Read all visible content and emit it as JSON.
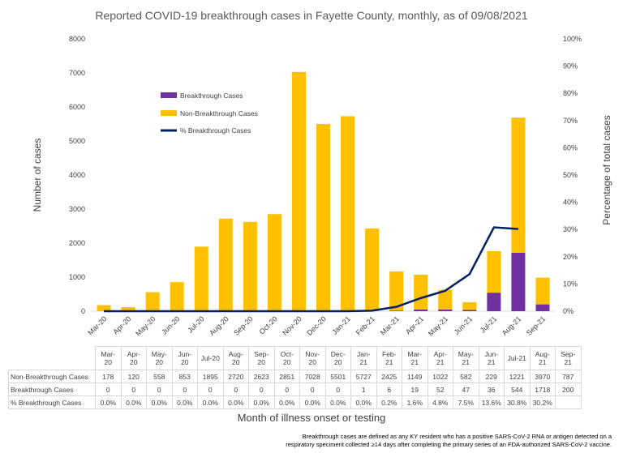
{
  "chart_data": {
    "type": "bar",
    "stacked": true,
    "title": "Reported COVID-19 breakthrough cases in Fayette County, monthly, as of 09/08/2021",
    "xlabel": "Month of illness onset or testing",
    "ylabel": "Number of cases",
    "y2label": "Percentage of total cases",
    "ylim": [
      0,
      8000
    ],
    "y2lim": [
      0,
      100
    ],
    "yticks": [
      0,
      1000,
      2000,
      3000,
      4000,
      5000,
      6000,
      7000,
      8000
    ],
    "y2ticks": [
      "0%",
      "10%",
      "20%",
      "30%",
      "40%",
      "50%",
      "60%",
      "70%",
      "80%",
      "90%",
      "100%"
    ],
    "categories": [
      "Mar-20",
      "Apr-20",
      "May-20",
      "Jun-20",
      "Jul-20",
      "Aug-20",
      "Sep-20",
      "Oct-20",
      "Nov-20",
      "Dec-20",
      "Jan-21",
      "Feb-21",
      "Mar-21",
      "Apr-21",
      "May-21",
      "Jun-21",
      "Jul-21",
      "Aug-21",
      "Sep-21"
    ],
    "legend_position": "top-left",
    "grid": false,
    "series": [
      {
        "name": "Breakthrough Cases",
        "kind": "bar",
        "color": "#7030a0",
        "values": [
          0,
          0,
          0,
          0,
          0,
          0,
          0,
          0,
          0,
          0,
          1,
          6,
          19,
          52,
          47,
          36,
          544,
          1718,
          200
        ]
      },
      {
        "name": "Non-Breakthrough Cases",
        "kind": "bar",
        "color": "#ffc000",
        "values": [
          178,
          120,
          558,
          853,
          1895,
          2720,
          2623,
          2851,
          7028,
          5501,
          5727,
          2425,
          1149,
          1022,
          582,
          229,
          1221,
          3970,
          787
        ]
      },
      {
        "name": "% Breakthrough Cases",
        "kind": "line",
        "axis": "right",
        "color": "#002060",
        "values": [
          0.0,
          0.0,
          0.0,
          0.0,
          0.0,
          0.0,
          0.0,
          0.0,
          0.0,
          0.0,
          0.0,
          0.2,
          1.6,
          4.8,
          7.5,
          13.6,
          30.8,
          30.2,
          null
        ],
        "labels": [
          "0.0%",
          "0.0%",
          "0.0%",
          "0.0%",
          "0.0%",
          "0.0%",
          "0.0%",
          "0.0%",
          "0.0%",
          "0.0%",
          "0.0%",
          "0.2%",
          "1.6%",
          "4.8%",
          "7.5%",
          "13.6%",
          "30.8%",
          "30.2%",
          ""
        ]
      }
    ]
  },
  "table": {
    "headers": [
      "Mar-\n20",
      "Apr-\n20",
      "May-\n20",
      "Jun-\n20",
      "Jul-20",
      "Aug-\n20",
      "Sep-\n20",
      "Oct-\n20",
      "Nov-\n20",
      "Dec-\n20",
      "Jan-\n21",
      "Feb-\n21",
      "Mar-\n21",
      "Apr-\n21",
      "May-\n21",
      "Jun-\n21",
      "Jul-21",
      "Aug-\n21",
      "Sep-\n21"
    ]
  },
  "footnote": {
    "line1": "Breakthrough cases are defined as any KY resident who has a positive SARS-CoV-2 RNA or antigen detected on a",
    "line2": "respiratory speciment collected ≥14 days after completing the primary series of an FDA-authorized SARS-CoV-2 vaccine."
  }
}
